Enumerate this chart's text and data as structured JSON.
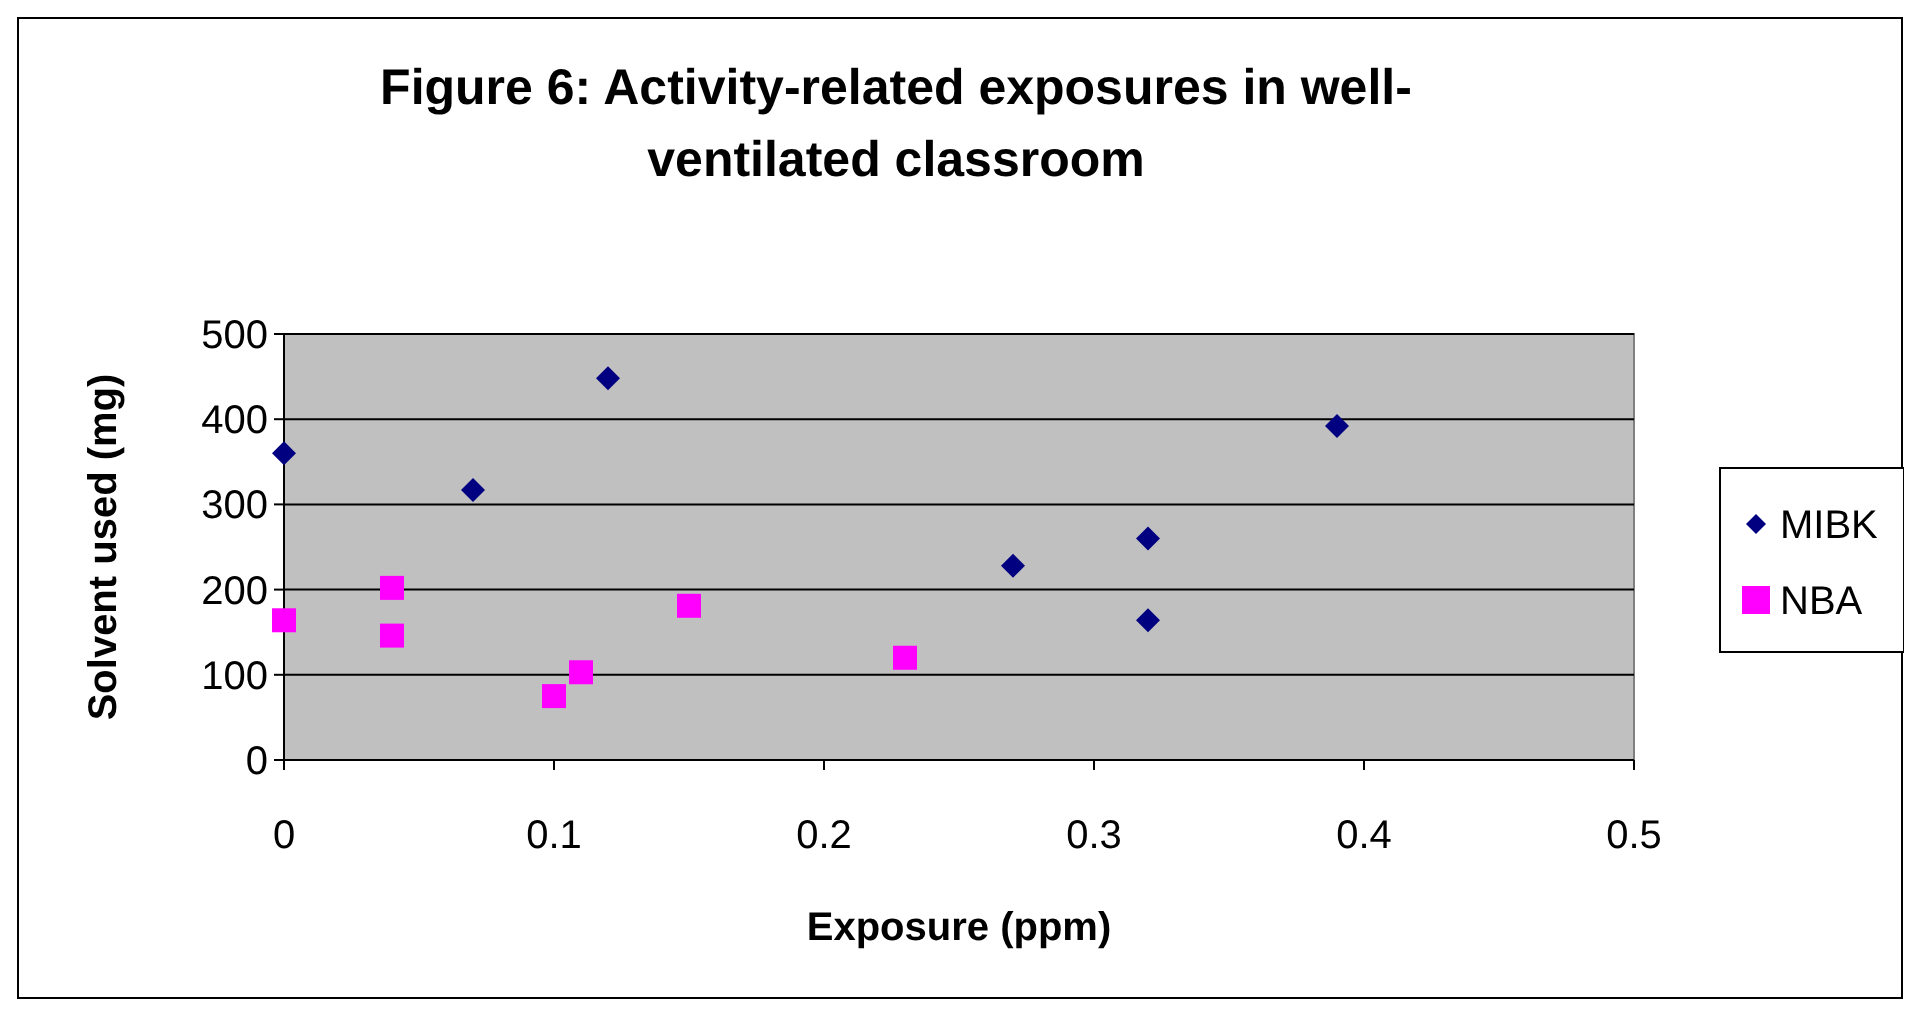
{
  "chart_data": {
    "type": "scatter",
    "title": "Figure 6: Activity-related exposures in well-ventilated classroom",
    "xlabel": "Exposure (ppm)",
    "ylabel": "Solvent used (mg)",
    "series": [
      {
        "name": "MIBK",
        "color": "#000080",
        "marker": "diamond",
        "x": [
          0,
          0.07,
          0.12,
          0.27,
          0.32,
          0.32,
          0.39
        ],
        "values": [
          360,
          317,
          448,
          228,
          260,
          164,
          392
        ]
      },
      {
        "name": "NBA",
        "color": "#ff00ff",
        "marker": "square",
        "x": [
          0,
          0.04,
          0.04,
          0.1,
          0.11,
          0.15,
          0.23
        ],
        "values": [
          164,
          202,
          146,
          75,
          103,
          181,
          120
        ]
      }
    ],
    "xlim": [
      0,
      0.5
    ],
    "xticks": [
      0,
      0.1,
      0.2,
      0.3,
      0.4,
      0.5
    ],
    "ylim": [
      0,
      500
    ],
    "yticks": [
      0,
      100,
      200,
      300,
      400,
      500
    ],
    "grid": "y",
    "legend": "right"
  }
}
